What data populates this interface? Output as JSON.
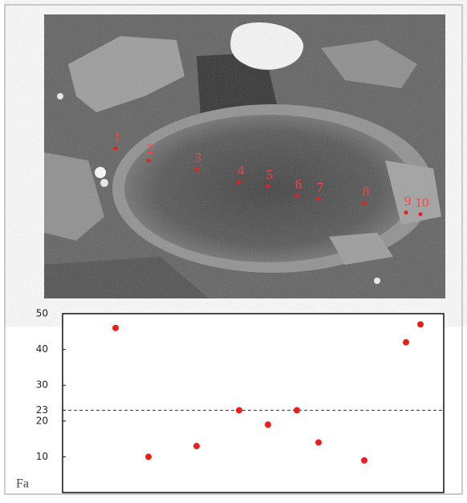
{
  "chart_data": {
    "type": "scatter",
    "categories": [
      "1",
      "2",
      "3",
      "4",
      "5",
      "6",
      "7",
      "8",
      "9",
      "10"
    ],
    "values": [
      46,
      10,
      13,
      23,
      19,
      23,
      14,
      9,
      42,
      47
    ],
    "color": "#e8201c",
    "ylim": [
      0,
      50
    ],
    "yticks": [
      10,
      20,
      23,
      30,
      40,
      50
    ],
    "reference_line": 23,
    "annotation": "Fa"
  }
}
